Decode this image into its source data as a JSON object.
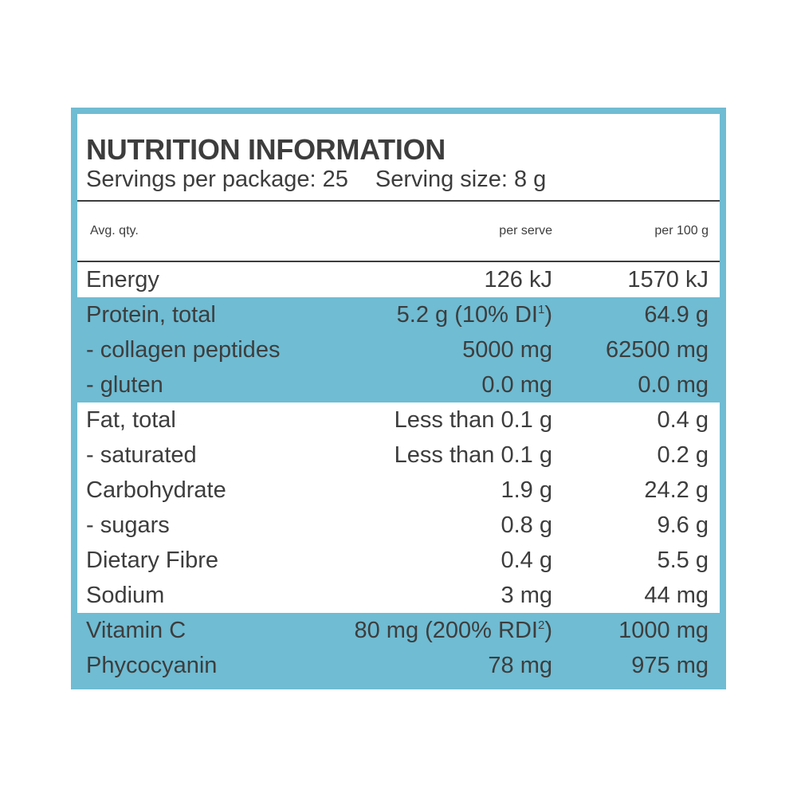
{
  "header": {
    "title": "NUTRITION INFORMATION",
    "servings_per_package": "Servings per package: 25",
    "serving_size": "Serving size: 8 g"
  },
  "columns": {
    "label": "Avg. qty.",
    "per_serve": "per serve",
    "per_100g": "per 100 g"
  },
  "rows": [
    {
      "label": "Energy",
      "per_serve": "126 kJ",
      "per_100g": "1570 kJ",
      "shade": "white"
    },
    {
      "label": "Protein, total",
      "per_serve": "5.2 g (10% DI",
      "per_serve_sup": "1",
      "per_serve_suffix": ")",
      "per_100g": "64.9 g",
      "shade": "blue"
    },
    {
      "label": "- collagen peptides",
      "per_serve": "5000 mg",
      "per_100g": "62500 mg",
      "shade": "blue"
    },
    {
      "label": "- gluten",
      "per_serve": "0.0 mg",
      "per_100g": "0.0 mg",
      "shade": "blue"
    },
    {
      "label": "Fat, total",
      "per_serve": "Less than 0.1 g",
      "per_100g": "0.4 g",
      "shade": "white"
    },
    {
      "label": "- saturated",
      "per_serve": "Less than 0.1 g",
      "per_100g": "0.2 g",
      "shade": "white"
    },
    {
      "label": "Carbohydrate",
      "per_serve": "1.9 g",
      "per_100g": "24.2 g",
      "shade": "white"
    },
    {
      "label": "- sugars",
      "per_serve": "0.8 g",
      "per_100g": "9.6 g",
      "shade": "white"
    },
    {
      "label": "Dietary Fibre",
      "per_serve": "0.4 g",
      "per_100g": "5.5 g",
      "shade": "white"
    },
    {
      "label": "Sodium",
      "per_serve": "3 mg",
      "per_100g": "44 mg",
      "shade": "white"
    },
    {
      "label": "Vitamin C",
      "per_serve": "80 mg (200% RDI",
      "per_serve_sup": "2",
      "per_serve_suffix": ")",
      "per_100g": "1000 mg",
      "shade": "blue"
    },
    {
      "label": "Phycocyanin",
      "per_serve": "78 mg",
      "per_100g": "975 mg",
      "shade": "blue"
    }
  ],
  "colors": {
    "accent": "#6fbcd3",
    "text": "#3d3d3d",
    "background": "#ffffff"
  }
}
